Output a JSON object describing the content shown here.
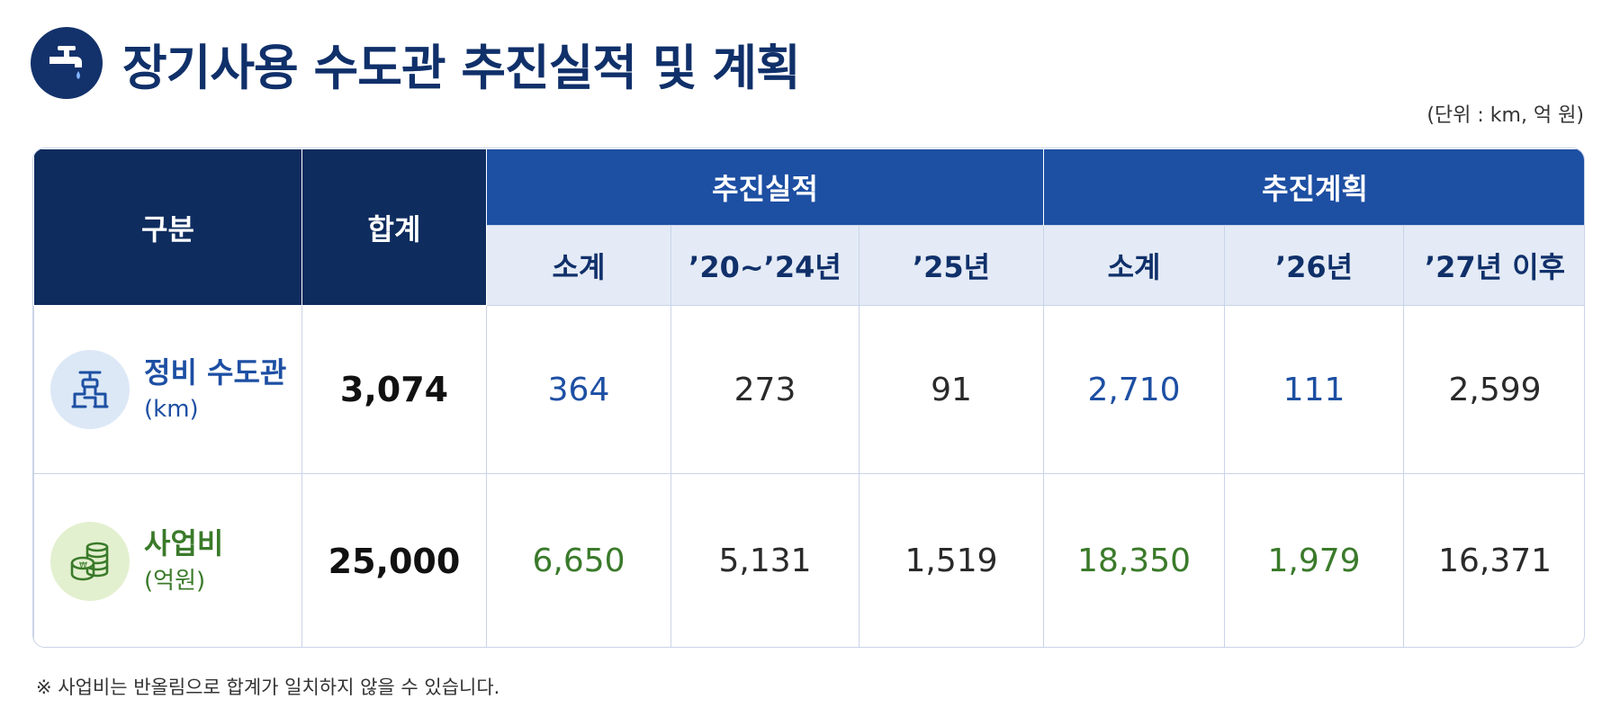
{
  "title": "장기사용 수도관 추진실적 및 계획",
  "unit_note": "(단위 : km, 억 원)",
  "header": {
    "category": "구분",
    "total": "합계",
    "group_results": "추진실적",
    "group_plan": "추진계획",
    "results_cols": [
      "소계",
      "’20~’24년",
      "’25년"
    ],
    "plan_cols": [
      "소계",
      "’26년",
      "’27년 이후"
    ]
  },
  "rows": [
    {
      "label": "정비 수도관",
      "unit": "(km)",
      "icon": "pipe-valve-icon",
      "color": "#1d4fa3",
      "total": "3,074",
      "results": [
        "364",
        "273",
        "91"
      ],
      "plan": [
        "2,710",
        "111",
        "2,599"
      ]
    },
    {
      "label": "사업비",
      "unit": "(억원)",
      "icon": "coins-icon",
      "color": "#3a7a2a",
      "total": "25,000",
      "results": [
        "6,650",
        "5,131",
        "1,519"
      ],
      "plan": [
        "18,350",
        "1,979",
        "16,371"
      ]
    }
  ],
  "footnote": "※ 사업비는 반올림으로 합계가 일치하지 않을 수 있습니다."
}
